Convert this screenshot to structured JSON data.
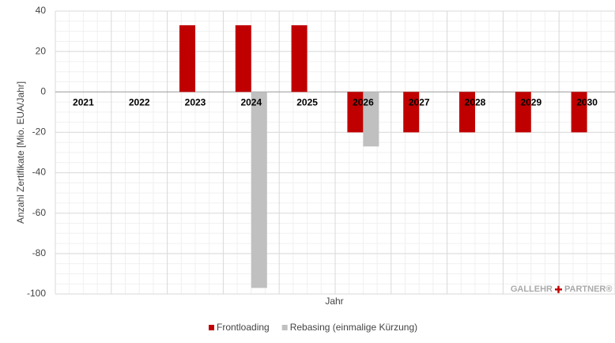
{
  "chart_data": {
    "type": "bar",
    "y_label": "Anzahl Zertifikate  [Mio. EUA/Jahr]",
    "x_label": "Jahr",
    "categories": [
      "2021",
      "2022",
      "2023",
      "2024",
      "2025",
      "2026",
      "2027",
      "2028",
      "2029",
      "2030"
    ],
    "series": [
      {
        "name": "Frontloading",
        "color": "#c00000",
        "values": [
          0,
          0,
          33,
          33,
          33,
          -20,
          -20,
          -20,
          -20,
          -20
        ]
      },
      {
        "name": "Rebasing (einmalige Kürzung)",
        "color": "#c0c0c0",
        "values": [
          0,
          0,
          0,
          -97,
          0,
          -27,
          0,
          0,
          0,
          0
        ]
      }
    ],
    "ylim": [
      -100,
      40
    ],
    "yticks": [
      -100,
      -80,
      -60,
      -40,
      -20,
      0,
      20,
      40
    ],
    "grid": true,
    "legend": "bottom",
    "watermark": {
      "left": "GALLEHR",
      "right": "PARTNER®"
    }
  }
}
